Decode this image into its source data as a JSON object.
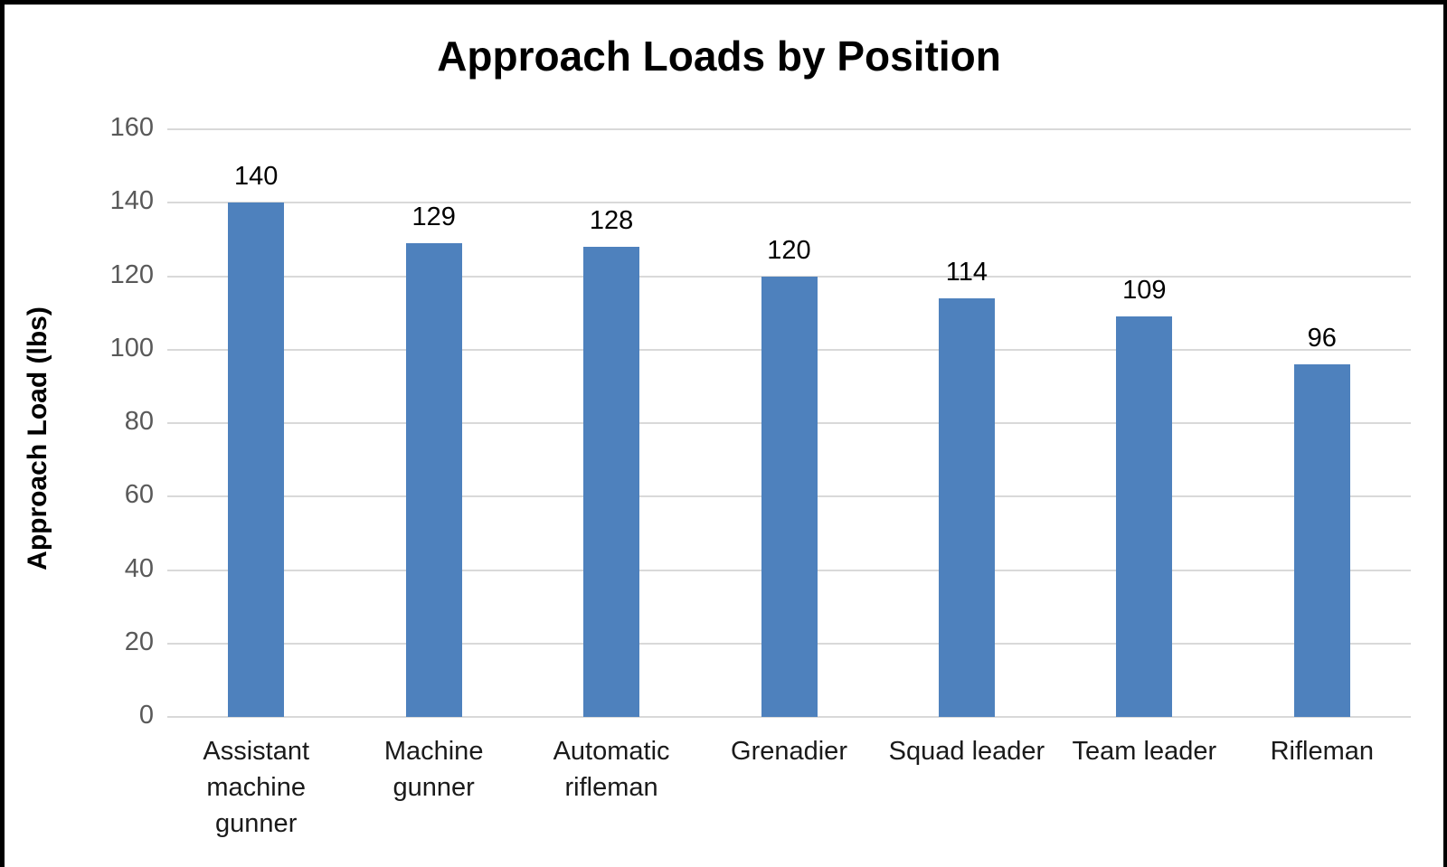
{
  "chart_data": {
    "type": "bar",
    "title": "Approach Loads by Position",
    "categories": [
      "Assistant machine gunner",
      "Machine gunner",
      "Automatic rifleman",
      "Grenadier",
      "Squad leader",
      "Team leader",
      "Rifleman"
    ],
    "values": [
      140,
      129,
      128,
      120,
      114,
      109,
      96
    ],
    "data_labels": [
      140,
      129,
      128,
      120,
      114,
      109,
      96
    ],
    "xlabel": "",
    "ylabel": "Approach Load (lbs)",
    "ylim": [
      0,
      160
    ],
    "yticks": [
      0,
      20,
      40,
      60,
      80,
      100,
      120,
      140,
      160
    ],
    "grid": true,
    "legend_position": "none",
    "bar_color": "#4e81bd",
    "gridline_color": "#d9d9d9",
    "tick_label_color": "#595959",
    "label_color": "#000000",
    "background_color": "#ffffff",
    "border_color": "#000000"
  }
}
